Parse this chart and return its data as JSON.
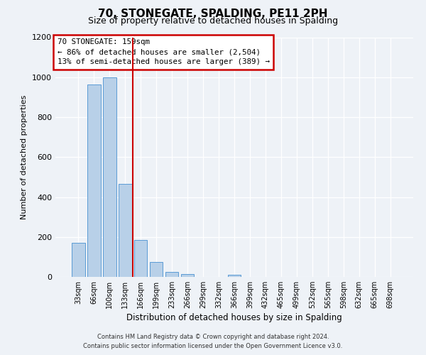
{
  "title": "70, STONEGATE, SPALDING, PE11 2PH",
  "subtitle": "Size of property relative to detached houses in Spalding",
  "xlabel": "Distribution of detached houses by size in Spalding",
  "ylabel": "Number of detached properties",
  "bar_labels": [
    "33sqm",
    "66sqm",
    "100sqm",
    "133sqm",
    "166sqm",
    "199sqm",
    "233sqm",
    "266sqm",
    "299sqm",
    "332sqm",
    "366sqm",
    "399sqm",
    "432sqm",
    "465sqm",
    "499sqm",
    "532sqm",
    "565sqm",
    "598sqm",
    "632sqm",
    "665sqm",
    "698sqm"
  ],
  "bar_values": [
    170,
    965,
    1000,
    465,
    185,
    75,
    25,
    15,
    0,
    0,
    10,
    0,
    0,
    0,
    0,
    0,
    0,
    0,
    0,
    0,
    0
  ],
  "bar_color": "#b8d0e8",
  "bar_edge_color": "#5b9bd5",
  "vline_color": "#cc0000",
  "vline_pos": 3.5,
  "annotation_title": "70 STONEGATE: 159sqm",
  "annotation_line1": "← 86% of detached houses are smaller (2,504)",
  "annotation_line2": "13% of semi-detached houses are larger (389) →",
  "annotation_box_color": "#cc0000",
  "ylim": [
    0,
    1200
  ],
  "yticks": [
    0,
    200,
    400,
    600,
    800,
    1000,
    1200
  ],
  "footer_line1": "Contains HM Land Registry data © Crown copyright and database right 2024.",
  "footer_line2": "Contains public sector information licensed under the Open Government Licence v3.0.",
  "bg_color": "#eef2f7"
}
